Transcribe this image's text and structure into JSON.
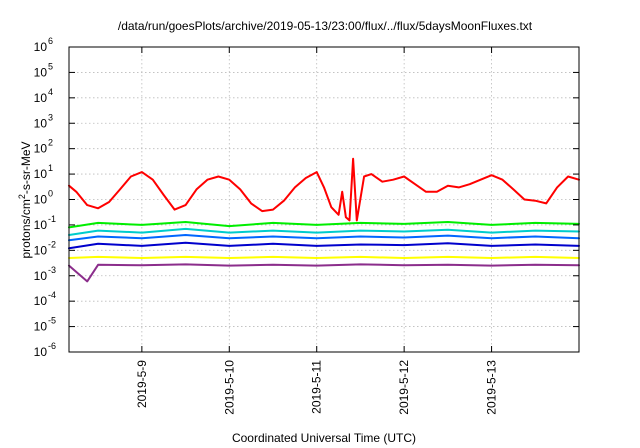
{
  "chart_data": {
    "type": "line",
    "title": "/data/run/goesPlots/archive/2019-05-13/23:00/flux/../flux/5daysMoonFluxes.txt",
    "xlabel": "Coordinated Universal Time (UTC)",
    "ylabel": "protons/cm2-s-sr-MeV",
    "ylabel_parts": {
      "before": "protons/cm",
      "sup": "2",
      "after": "-s-sr-MeV"
    },
    "yscale": "log",
    "ylim": [
      1e-06,
      1000000.0
    ],
    "xlim": [
      "2019-05-08 04:00",
      "2019-05-14 00:00"
    ],
    "grid": true,
    "xticks": [
      {
        "at": "2019-05-09 00:00",
        "label": "2019-5-9"
      },
      {
        "at": "2019-05-10 00:00",
        "label": "2019-5-10"
      },
      {
        "at": "2019-05-11 00:00",
        "label": "2019-5-11"
      },
      {
        "at": "2019-05-12 00:00",
        "label": "2019-5-12"
      },
      {
        "at": "2019-05-13 00:00",
        "label": "2019-5-13"
      }
    ],
    "yticks": [
      {
        "value": 1e-06,
        "label": "10",
        "exp": "-6"
      },
      {
        "value": 1e-05,
        "label": "10",
        "exp": "-5"
      },
      {
        "value": 0.0001,
        "label": "10",
        "exp": "-4"
      },
      {
        "value": 0.001,
        "label": "10",
        "exp": "-3"
      },
      {
        "value": 0.01,
        "label": "10",
        "exp": "-2"
      },
      {
        "value": 0.1,
        "label": "10",
        "exp": "-1"
      },
      {
        "value": 1,
        "label": "10",
        "exp": "0"
      },
      {
        "value": 10,
        "label": "10",
        "exp": "1"
      },
      {
        "value": 100,
        "label": "10",
        "exp": "2"
      },
      {
        "value": 1000,
        "label": "10",
        "exp": "3"
      },
      {
        "value": 10000,
        "label": "10",
        "exp": "4"
      },
      {
        "value": 100000,
        "label": "10",
        "exp": "5"
      },
      {
        "value": 1000000,
        "label": "10",
        "exp": "6"
      }
    ],
    "series": [
      {
        "color": "#ff0000",
        "x": [
          "2019-05-08 04:00",
          "2019-05-08 06:00",
          "2019-05-08 09:00",
          "2019-05-08 12:00",
          "2019-05-08 15:00",
          "2019-05-08 18:00",
          "2019-05-08 21:00",
          "2019-05-09 00:00",
          "2019-05-09 03:00",
          "2019-05-09 06:00",
          "2019-05-09 09:00",
          "2019-05-09 12:00",
          "2019-05-09 15:00",
          "2019-05-09 18:00",
          "2019-05-09 21:00",
          "2019-05-10 00:00",
          "2019-05-10 03:00",
          "2019-05-10 06:00",
          "2019-05-10 09:00",
          "2019-05-10 12:00",
          "2019-05-10 15:00",
          "2019-05-10 18:00",
          "2019-05-10 21:00",
          "2019-05-11 00:00",
          "2019-05-11 02:00",
          "2019-05-11 04:00",
          "2019-05-11 06:00",
          "2019-05-11 07:00",
          "2019-05-11 08:00",
          "2019-05-11 09:00",
          "2019-05-11 10:00",
          "2019-05-11 11:00",
          "2019-05-11 13:00",
          "2019-05-11 15:00",
          "2019-05-11 18:00",
          "2019-05-11 21:00",
          "2019-05-12 00:00",
          "2019-05-12 03:00",
          "2019-05-12 06:00",
          "2019-05-12 09:00",
          "2019-05-12 12:00",
          "2019-05-12 15:00",
          "2019-05-12 18:00",
          "2019-05-12 21:00",
          "2019-05-13 00:00",
          "2019-05-13 03:00",
          "2019-05-13 06:00",
          "2019-05-13 09:00",
          "2019-05-13 12:00",
          "2019-05-13 15:00",
          "2019-05-13 18:00",
          "2019-05-13 21:00",
          "2019-05-14 00:00"
        ],
        "y": [
          3.5,
          2.0,
          0.6,
          0.45,
          0.8,
          2.5,
          8,
          12,
          6,
          1.5,
          0.4,
          0.6,
          2.5,
          6,
          8,
          6,
          2.5,
          0.7,
          0.35,
          0.4,
          0.9,
          3,
          7,
          12,
          3,
          0.5,
          0.25,
          2,
          0.2,
          0.15,
          40,
          0.15,
          8,
          10,
          5,
          6,
          8,
          4,
          2,
          2,
          3.5,
          3,
          4,
          6,
          9,
          6,
          2.5,
          1.0,
          0.9,
          0.7,
          3,
          8,
          6
        ]
      },
      {
        "color": "#00ee00",
        "x": [
          "2019-05-08 04:00",
          "2019-05-08 12:00",
          "2019-05-09 00:00",
          "2019-05-09 12:00",
          "2019-05-10 00:00",
          "2019-05-10 12:00",
          "2019-05-11 00:00",
          "2019-05-11 12:00",
          "2019-05-12 00:00",
          "2019-05-12 12:00",
          "2019-05-13 00:00",
          "2019-05-13 12:00",
          "2019-05-14 00:00"
        ],
        "y": [
          0.08,
          0.12,
          0.1,
          0.13,
          0.09,
          0.12,
          0.1,
          0.12,
          0.11,
          0.13,
          0.1,
          0.12,
          0.11
        ]
      },
      {
        "color": "#00cccc",
        "x": [
          "2019-05-08 04:00",
          "2019-05-08 12:00",
          "2019-05-09 00:00",
          "2019-05-09 12:00",
          "2019-05-10 00:00",
          "2019-05-10 12:00",
          "2019-05-11 00:00",
          "2019-05-11 12:00",
          "2019-05-12 00:00",
          "2019-05-12 12:00",
          "2019-05-13 00:00",
          "2019-05-13 12:00",
          "2019-05-14 00:00"
        ],
        "y": [
          0.04,
          0.06,
          0.05,
          0.07,
          0.05,
          0.06,
          0.05,
          0.06,
          0.055,
          0.065,
          0.05,
          0.06,
          0.055
        ]
      },
      {
        "color": "#0066ff",
        "x": [
          "2019-05-08 04:00",
          "2019-05-08 12:00",
          "2019-05-09 00:00",
          "2019-05-09 12:00",
          "2019-05-10 00:00",
          "2019-05-10 12:00",
          "2019-05-11 00:00",
          "2019-05-11 12:00",
          "2019-05-12 00:00",
          "2019-05-12 12:00",
          "2019-05-13 00:00",
          "2019-05-13 12:00",
          "2019-05-14 00:00"
        ],
        "y": [
          0.025,
          0.035,
          0.03,
          0.04,
          0.03,
          0.035,
          0.03,
          0.035,
          0.032,
          0.038,
          0.03,
          0.035,
          0.03
        ]
      },
      {
        "color": "#0000cc",
        "x": [
          "2019-05-08 04:00",
          "2019-05-08 12:00",
          "2019-05-09 00:00",
          "2019-05-09 12:00",
          "2019-05-10 00:00",
          "2019-05-10 12:00",
          "2019-05-11 00:00",
          "2019-05-11 12:00",
          "2019-05-12 00:00",
          "2019-05-12 12:00",
          "2019-05-13 00:00",
          "2019-05-13 12:00",
          "2019-05-14 00:00"
        ],
        "y": [
          0.012,
          0.018,
          0.015,
          0.02,
          0.015,
          0.018,
          0.015,
          0.017,
          0.016,
          0.019,
          0.015,
          0.017,
          0.015
        ]
      },
      {
        "color": "#ffff00",
        "x": [
          "2019-05-08 04:00",
          "2019-05-08 12:00",
          "2019-05-09 00:00",
          "2019-05-09 12:00",
          "2019-05-10 00:00",
          "2019-05-10 12:00",
          "2019-05-11 00:00",
          "2019-05-11 12:00",
          "2019-05-12 00:00",
          "2019-05-12 12:00",
          "2019-05-13 00:00",
          "2019-05-13 12:00",
          "2019-05-14 00:00"
        ],
        "y": [
          0.005,
          0.0055,
          0.005,
          0.0055,
          0.005,
          0.0055,
          0.005,
          0.0055,
          0.005,
          0.0055,
          0.005,
          0.0055,
          0.005
        ]
      },
      {
        "color": "#8b2d8b",
        "x": [
          "2019-05-08 04:00",
          "2019-05-08 09:00",
          "2019-05-08 12:00",
          "2019-05-09 00:00",
          "2019-05-09 12:00",
          "2019-05-10 00:00",
          "2019-05-10 12:00",
          "2019-05-11 00:00",
          "2019-05-11 12:00",
          "2019-05-12 00:00",
          "2019-05-12 12:00",
          "2019-05-13 00:00",
          "2019-05-13 12:00",
          "2019-05-14 00:00"
        ],
        "y": [
          0.0025,
          0.0006,
          0.0027,
          0.0026,
          0.0028,
          0.0025,
          0.0027,
          0.0025,
          0.0028,
          0.0026,
          0.0027,
          0.0025,
          0.0027,
          0.0026
        ]
      }
    ]
  }
}
